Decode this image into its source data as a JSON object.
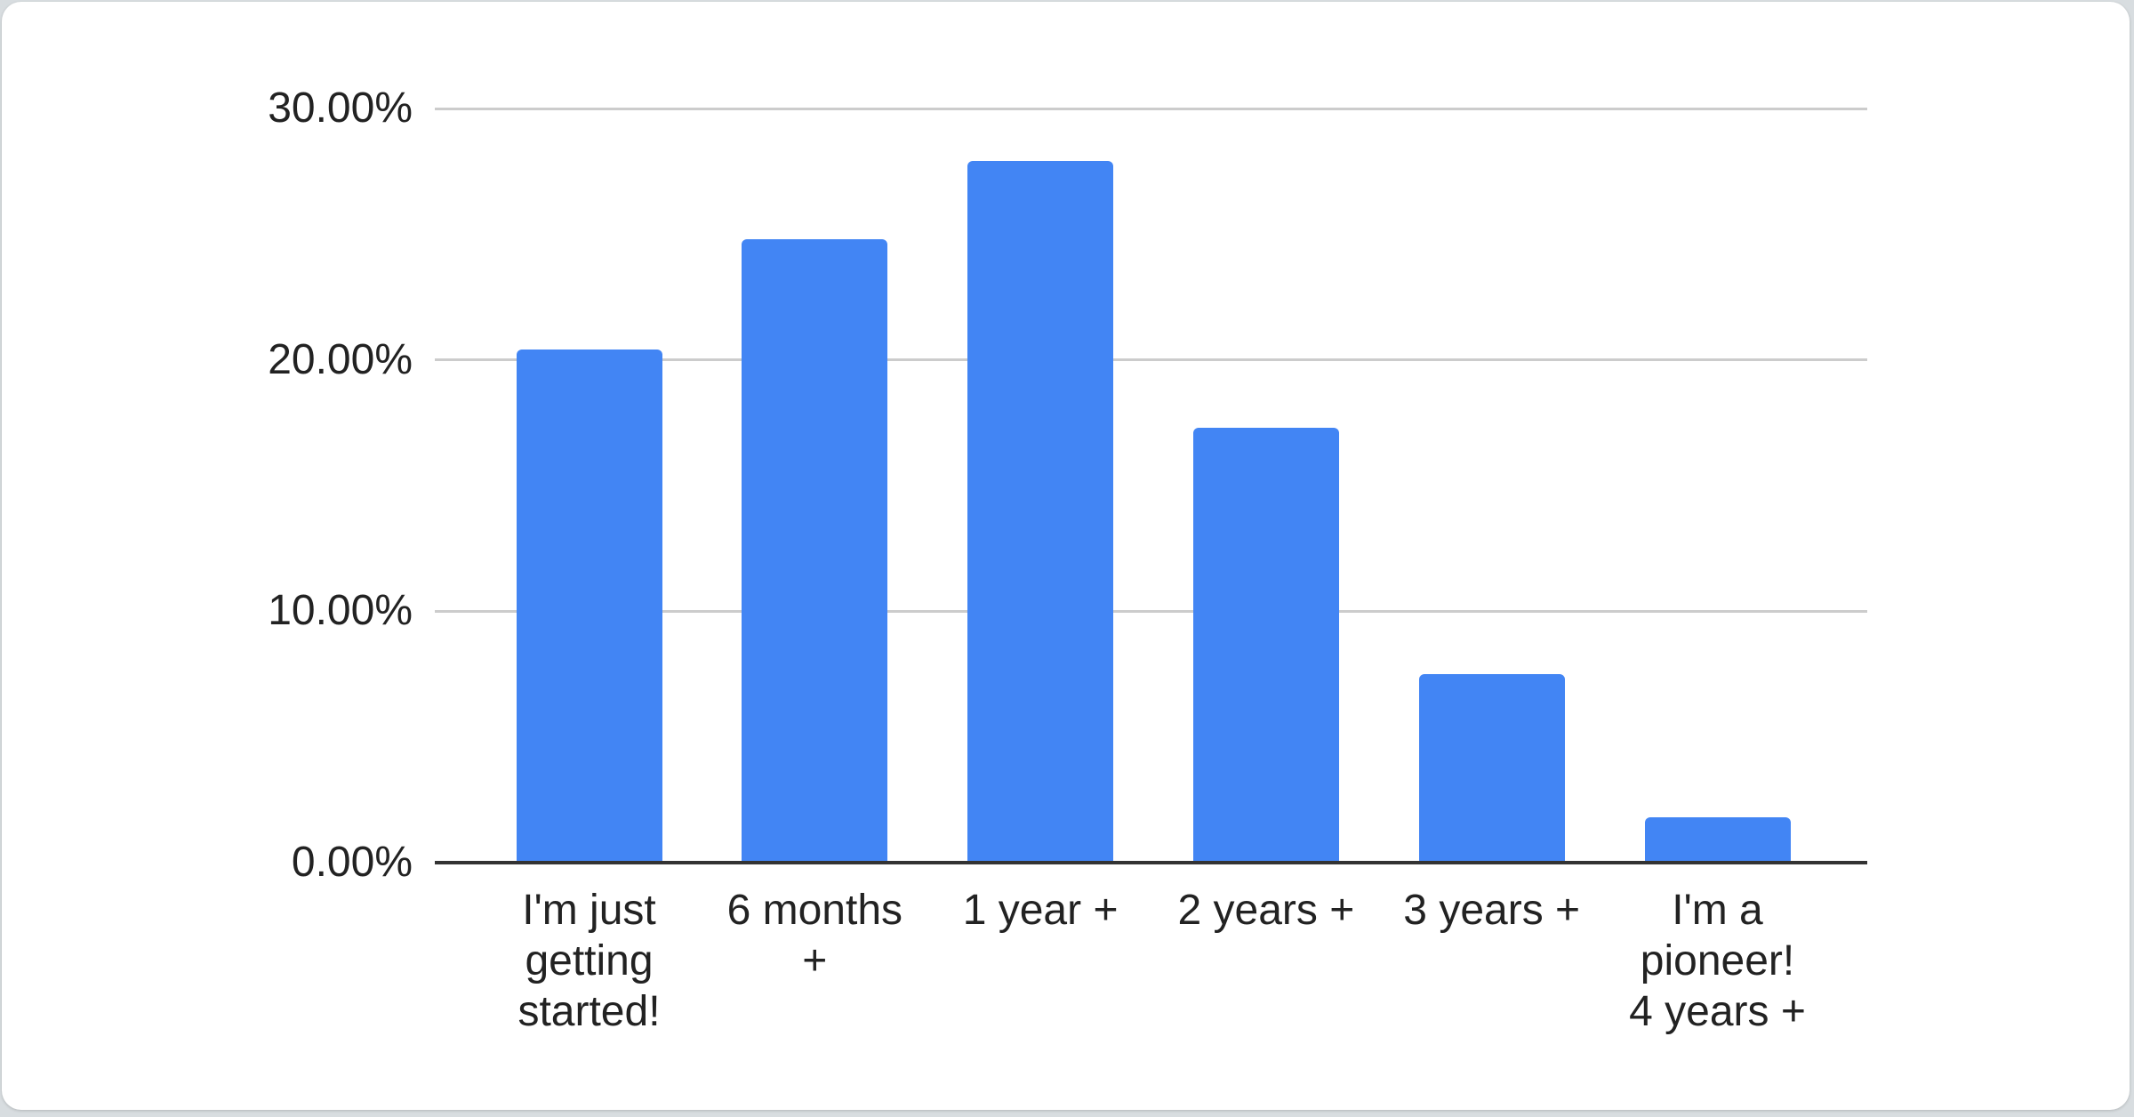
{
  "page": {
    "background_color": "#d8dde0",
    "card_color": "#ffffff"
  },
  "chart_data": {
    "type": "bar",
    "title": "",
    "xlabel": "",
    "ylabel": "",
    "legend": "none",
    "grid": true,
    "categories": [
      "I'm just getting started!",
      "6 months +",
      "1 year +",
      "2 years +",
      "3 years +",
      "I'm a pioneer! 4 years +"
    ],
    "category_display_lines": [
      "I'm just\ngetting\nstarted!",
      "6 months\n+",
      "1 year +",
      "2 years +",
      "3 years +",
      "I'm a\npioneer!\n4 years +"
    ],
    "values": [
      20.4,
      24.8,
      27.9,
      17.3,
      7.5,
      1.8
    ],
    "value_unit": "%",
    "y_axis": {
      "tick_labels": [
        "0.00%",
        "10.00%",
        "20.00%",
        "30.00%"
      ],
      "tick_values": [
        0,
        10,
        20,
        30
      ],
      "min": 0,
      "max": 30
    },
    "colors": {
      "bar": "#4285f4",
      "gridline": "#cccccc",
      "axis_line": "#333333",
      "label_text": "#222222"
    }
  }
}
